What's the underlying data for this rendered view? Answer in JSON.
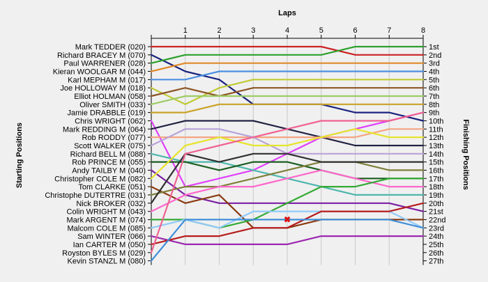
{
  "chart_data": {
    "type": "line",
    "title": "Laps",
    "ylabel_left": "Starting Positions",
    "ylabel_right": "Finishing Positions",
    "x": [
      0,
      1,
      2,
      3,
      4,
      5,
      6,
      7,
      8
    ],
    "x_tick_labels": [
      "1",
      "2",
      "3",
      "4",
      "5",
      "6",
      "7",
      "8"
    ],
    "positions": [
      1,
      2,
      3,
      4,
      5,
      6,
      7,
      8,
      9,
      10,
      11,
      12,
      13,
      14,
      15,
      16,
      17,
      18,
      19,
      20,
      21,
      22,
      23,
      24,
      25,
      26,
      27
    ],
    "starting_labels": [
      "Mark TEDDER (020)",
      "Richard BRACEY    M (070)",
      "Paul WARRENER (028)",
      "Kieran WOOLGAR    M (044)",
      "Karl MEPHAM    M (017)",
      "Joe HOLLOWAY    M (018)",
      "Elliot HOLMAN (058)",
      "Oliver SMITH (033)",
      "Jamie DRABBLE (019)",
      "Chris WRIGHT (062)",
      "Mark REDDING    M (064)",
      "Rob RODDY (077)",
      "Scott WALKER (075)",
      "Richard BELL    M (088)",
      "Rob PRINCE    M (055)",
      "Andy TAILBY    M (040)",
      "Christopher COLE    M (082)",
      "Tom CLARKE (051)",
      "Christophe DUTERTRE (031)",
      "Nick BROKER (032)",
      "Colin WRIGHT    M (043)",
      "Mark ARGENT    M (074)",
      "Malcom COLE    M (085)",
      "Sam WINTER (066)",
      "Ian CARTER    M (050)",
      "Royston BYLES    M (029)",
      "Kevin STANZL    M (080)"
    ],
    "finishing_labels": [
      "1st",
      "2nd",
      "3rd",
      "4th",
      "5th",
      "6th",
      "7th",
      "8th",
      "9th",
      "10th",
      "11th",
      "12th",
      "13th",
      "14th",
      "15th",
      "16th",
      "17th",
      "18th",
      "19th",
      "20th",
      "21st",
      "22nd",
      "23rd",
      "24th",
      "25th",
      "26th",
      "27th"
    ],
    "series": [
      {
        "color": "#cc2222",
        "values": [
          1,
          1,
          1,
          1,
          1,
          1,
          2,
          2,
          2
        ]
      },
      {
        "color": "#1a237e",
        "values": [
          2,
          4,
          5,
          8,
          8,
          8,
          9,
          9,
          10
        ]
      },
      {
        "color": "#2ca02c",
        "values": [
          3,
          2,
          2,
          2,
          2,
          2,
          1,
          1,
          1
        ]
      },
      {
        "color": "#e08a2a",
        "values": [
          4,
          3,
          3,
          3,
          3,
          3,
          3,
          3,
          3
        ]
      },
      {
        "color": "#4a90e2",
        "values": [
          5,
          5,
          4,
          4,
          4,
          4,
          4,
          4,
          4
        ]
      },
      {
        "color": "#c0ca33",
        "values": [
          6,
          8,
          6,
          5,
          5,
          5,
          5,
          5,
          5
        ]
      },
      {
        "color": "#8d5524",
        "values": [
          7,
          6,
          7,
          6,
          6,
          6,
          6,
          6,
          6
        ]
      },
      {
        "color": "#9ccc65",
        "values": [
          8,
          7,
          7,
          7,
          7,
          7,
          7,
          7,
          7
        ]
      },
      {
        "color": "#c9a227",
        "values": [
          9,
          9,
          8,
          8,
          8,
          8,
          8,
          8,
          8
        ]
      },
      {
        "color": "#e040fb",
        "values": [
          10,
          18,
          17,
          16,
          14,
          12,
          11,
          10,
          9
        ]
      },
      {
        "color": "#222244",
        "values": [
          11,
          10,
          10,
          10,
          11,
          12,
          13,
          13,
          13
        ]
      },
      {
        "color": "#f4a582",
        "values": [
          12,
          12,
          12,
          12,
          12,
          12,
          12,
          11,
          11
        ]
      },
      {
        "color": "#b8a2d9",
        "values": [
          13,
          11,
          11,
          12,
          14,
          14,
          14,
          14,
          14
        ]
      },
      {
        "color": "#4db6ac",
        "values": [
          14,
          15,
          15,
          16,
          17,
          18,
          19,
          19,
          19
        ]
      },
      {
        "color": "#1b5e20",
        "values": [
          15,
          15,
          16,
          15,
          15,
          16,
          17,
          17,
          17
        ]
      },
      {
        "color": "#7b1fa2",
        "values": [
          16,
          19,
          20,
          20,
          20,
          20,
          20,
          20,
          21
        ]
      },
      {
        "color": "#e7e42c",
        "values": [
          17,
          13,
          12,
          13,
          13,
          12,
          11,
          12,
          12
        ]
      },
      {
        "color": "#8a3b10",
        "values": [
          18,
          20,
          19,
          23,
          23,
          22,
          22,
          22,
          22
        ]
      },
      {
        "color": "#7f7f3a",
        "values": [
          19,
          18,
          18,
          17,
          16,
          15,
          15,
          16,
          16
        ]
      },
      {
        "color": "#303030",
        "values": [
          20,
          14,
          15,
          14,
          14,
          15,
          15,
          15,
          15
        ]
      },
      {
        "color": "#ff66cc",
        "values": [
          21,
          19,
          18,
          18,
          17,
          16,
          17,
          18,
          18
        ]
      },
      {
        "color": "#33aa33",
        "values": [
          22,
          22,
          23,
          22,
          20,
          18,
          18,
          17,
          17
        ]
      },
      {
        "color": "#90caf9",
        "values": [
          23,
          22,
          23,
          21,
          21,
          21,
          21,
          21,
          23
        ]
      },
      {
        "color": "#9c27b0",
        "values": [
          24,
          25,
          25,
          25,
          25,
          24,
          24,
          24,
          24
        ]
      },
      {
        "color": "#b71c1c",
        "values": [
          25,
          24,
          24,
          23,
          23,
          21,
          21,
          21,
          20
        ]
      },
      {
        "color": "#f06292",
        "values": [
          26,
          14,
          13,
          12,
          11,
          10,
          10,
          10,
          9
        ]
      },
      {
        "color": "#3f8fd8",
        "values": [
          27,
          22,
          22,
          22,
          22,
          22,
          22,
          22,
          23
        ]
      }
    ],
    "markers": [
      {
        "label": "✖",
        "color": "#dd1111",
        "x": 4,
        "y": 22
      }
    ],
    "grid": true
  }
}
